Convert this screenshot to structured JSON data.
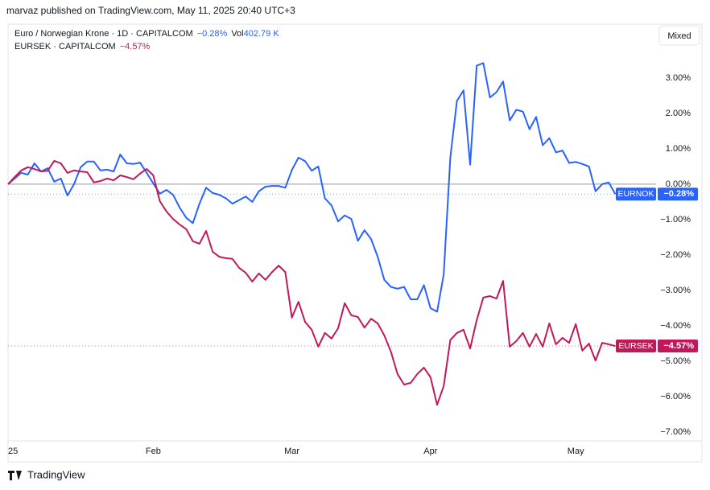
{
  "header": {
    "published": "marvaz published on TradingView.com, May 11, 2025 20:40 UTC+3",
    "mixed_button": "Mixed",
    "brand": "TradingView"
  },
  "chart_data": {
    "type": "line",
    "volume_label": "Vol",
    "volume": "402.79 K",
    "categories": [
      "25",
      null,
      null,
      null,
      null,
      null,
      null,
      null,
      null,
      null,
      null,
      null,
      null,
      null,
      null,
      null,
      null,
      null,
      null,
      null,
      null,
      null,
      "Feb",
      null,
      null,
      null,
      null,
      null,
      null,
      null,
      null,
      null,
      null,
      null,
      null,
      null,
      null,
      null,
      null,
      null,
      null,
      null,
      null,
      "Mar",
      null,
      null,
      null,
      null,
      null,
      null,
      null,
      null,
      null,
      null,
      null,
      null,
      null,
      null,
      null,
      null,
      null,
      null,
      null,
      null,
      "Apr",
      null,
      null,
      null,
      null,
      null,
      null,
      null,
      null,
      null,
      null,
      null,
      null,
      null,
      null,
      null,
      null,
      null,
      null,
      null,
      null,
      null,
      "May",
      null,
      null,
      null,
      null,
      null,
      null
    ],
    "series": [
      {
        "name": "EURNOK",
        "title": "Euro / Norwegian Krone · 1D · CAPITALCOM",
        "color": "#2962ff",
        "values": [
          0,
          0.16,
          0.32,
          0.27,
          0.59,
          0.36,
          0.45,
          0.07,
          0.16,
          -0.32,
          0,
          0.48,
          0.64,
          0.64,
          0.39,
          0.41,
          0.36,
          0.84,
          0.59,
          0.57,
          0.61,
          0.32,
          0.02,
          -0.27,
          -0.16,
          -0.3,
          -0.66,
          -0.95,
          -1.1,
          -0.55,
          -0.1,
          -0.25,
          -0.3,
          -0.4,
          -0.55,
          -0.45,
          -0.35,
          -0.5,
          -0.2,
          -0.07,
          -0.05,
          -0.05,
          -0.1,
          0.4,
          0.75,
          0.65,
          0.38,
          0.5,
          -0.4,
          -0.6,
          -1.05,
          -0.88,
          -0.98,
          -1.6,
          -1.3,
          -1.55,
          -2.05,
          -2.7,
          -2.9,
          -2.95,
          -2.9,
          -3.25,
          -3.25,
          -2.85,
          -3.5,
          -3.6,
          -2.55,
          0.75,
          2.35,
          2.65,
          0.55,
          3.35,
          3.42,
          2.45,
          2.6,
          2.9,
          1.8,
          2.1,
          2.05,
          1.55,
          1.9,
          1.1,
          1.3,
          0.9,
          0.95,
          0.6,
          0.63,
          0.57,
          0.5,
          -0.2,
          0,
          0.05,
          -0.28
        ],
        "value_labels": [
          null,
          null,
          null,
          null,
          null,
          null,
          null,
          null,
          null,
          null,
          null,
          null,
          null,
          null,
          null,
          null,
          null,
          null,
          null,
          null,
          null,
          null,
          null,
          null,
          null,
          null,
          null,
          null,
          null,
          null,
          null,
          null,
          null,
          null,
          null,
          null,
          null,
          null,
          null,
          null,
          null,
          null,
          null,
          null,
          null,
          null,
          null,
          null,
          null,
          null,
          null,
          null,
          null,
          null,
          null,
          null,
          null,
          null,
          null,
          null,
          null,
          null,
          null,
          null,
          null,
          null,
          null,
          null,
          null,
          null,
          null,
          null,
          null,
          null,
          null,
          null,
          null,
          null,
          null,
          null,
          null,
          null,
          null,
          null,
          null,
          null,
          null,
          null,
          null,
          null,
          null,
          null,
          "−0.28%"
        ]
      },
      {
        "name": "EURSEK",
        "title": "EURSEK · CAPITALCOM",
        "color": "#c2185b",
        "values": [
          0,
          0.2,
          0.39,
          0.48,
          0.43,
          0.36,
          0.38,
          0.66,
          0.59,
          0.32,
          0.39,
          0.36,
          0.34,
          0.05,
          0.09,
          0.16,
          0.11,
          0.25,
          0.2,
          0.14,
          0.3,
          0.43,
          0.25,
          -0.48,
          -0.77,
          -0.98,
          -1.14,
          -1.27,
          -1.61,
          -1.68,
          -1.32,
          -1.91,
          -2.05,
          -2.09,
          -2.11,
          -2.36,
          -2.5,
          -2.75,
          -2.52,
          -2.7,
          -2.48,
          -2.3,
          -2.48,
          -3.77,
          -3.32,
          -3.89,
          -4.11,
          -4.59,
          -4.2,
          -4.36,
          -4.07,
          -3.36,
          -3.7,
          -3.75,
          -4.05,
          -3.8,
          -3.93,
          -4.27,
          -4.73,
          -5.36,
          -5.66,
          -5.61,
          -5.36,
          -5.18,
          -5.45,
          -6.23,
          -5.7,
          -4.4,
          -4.2,
          -4.11,
          -4.64,
          -3.84,
          -3.2,
          -3.16,
          -3.23,
          -2.73,
          -4.59,
          -4.43,
          -4.2,
          -4.59,
          -4.23,
          -4.59,
          -3.93,
          -4.52,
          -4.34,
          -4.48,
          -3.95,
          -4.7,
          -4.5,
          -4.98,
          -4.48,
          -4.52,
          -4.57
        ],
        "value_labels": [
          null,
          null,
          null,
          null,
          null,
          null,
          null,
          null,
          null,
          null,
          null,
          null,
          null,
          null,
          null,
          null,
          null,
          null,
          null,
          null,
          null,
          null,
          null,
          null,
          null,
          null,
          null,
          null,
          null,
          null,
          null,
          null,
          null,
          null,
          null,
          null,
          null,
          null,
          null,
          null,
          null,
          null,
          null,
          null,
          null,
          null,
          null,
          null,
          null,
          null,
          null,
          null,
          null,
          null,
          null,
          null,
          null,
          null,
          null,
          null,
          null,
          null,
          null,
          null,
          null,
          null,
          null,
          null,
          null,
          null,
          null,
          null,
          null,
          null,
          null,
          null,
          null,
          null,
          null,
          null,
          null,
          null,
          null,
          null,
          null,
          null,
          null,
          null,
          null,
          null,
          null,
          null,
          "−4.57%"
        ]
      }
    ],
    "ylim": [
      -7.25,
      4.52
    ],
    "yticks": [
      {
        "value": 3,
        "label": "3.00%"
      },
      {
        "value": 2,
        "label": "2.00%"
      },
      {
        "value": 1,
        "label": "1.00%"
      },
      {
        "value": 0,
        "label": "0.00%"
      },
      {
        "value": -1,
        "label": "−1.00%"
      },
      {
        "value": -2,
        "label": "−2.00%"
      },
      {
        "value": -3,
        "label": "−3.00%"
      },
      {
        "value": -4,
        "label": "−4.00%"
      },
      {
        "value": -5,
        "label": "−5.00%"
      },
      {
        "value": -6,
        "label": "−6.00%"
      },
      {
        "value": -7,
        "label": "−7.00%"
      }
    ]
  }
}
